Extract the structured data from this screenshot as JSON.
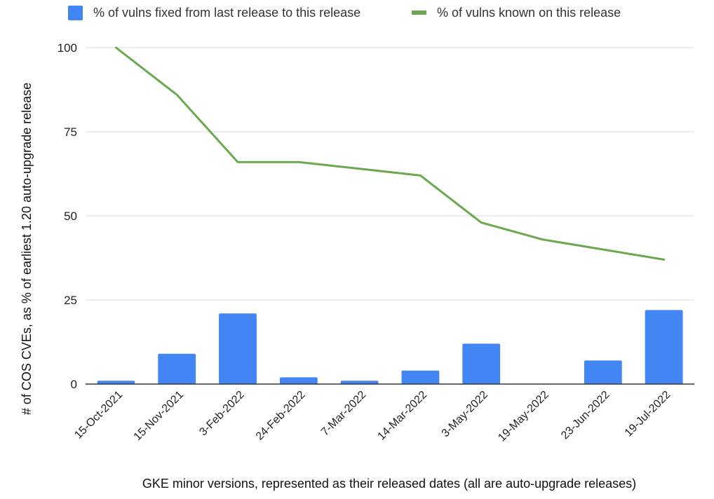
{
  "chart_data": {
    "type": "bar",
    "categories": [
      "15-Oct-2021",
      "15-Nov-2021",
      "3-Feb-2022",
      "24-Feb-2022",
      "7-Mar-2022",
      "14-Mar-2022",
      "3-May-2022",
      "19-May-2022",
      "23-Jun-2022",
      "19-Jul-2022"
    ],
    "series": [
      {
        "name": "% of vulns fixed from last release to this release",
        "type": "bar",
        "color": "#4285f4",
        "values": [
          1,
          9,
          21,
          2,
          1,
          4,
          12,
          0,
          7,
          22
        ]
      },
      {
        "name": "% of vulns known on this release",
        "type": "line",
        "color": "#6aa84f",
        "values": [
          100,
          86,
          66,
          66,
          64,
          62,
          48,
          43,
          40,
          37
        ]
      }
    ],
    "xlabel": "GKE minor versions, represented as their released dates (all are auto-upgrade releases)",
    "ylabel": "# of COS CVEs, as % of earliest 1.20 auto-upgrade release",
    "ylim": [
      0,
      100
    ],
    "yticks": [
      0,
      25,
      50,
      75,
      100
    ],
    "grid": true,
    "legend_position": "top"
  }
}
